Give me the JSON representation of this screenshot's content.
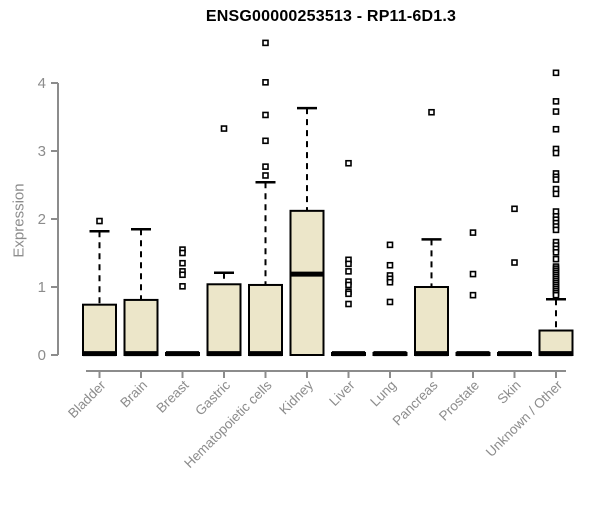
{
  "header": {
    "title": "ENSG00000253513 - RP11-6D1.3"
  },
  "chart_data": {
    "type": "boxplot",
    "title": "ENSG00000253513 - RP11-6D1.3",
    "xlabel": "",
    "ylabel": "Expression",
    "ylim": [
      0,
      4
    ],
    "yticks": [
      0,
      1,
      2,
      3,
      4
    ],
    "grid": false,
    "legend": "none",
    "colors": {
      "box_fill": "#ece6c9",
      "box_border": "#000000",
      "median": "#000000",
      "outlier_stroke": "#000000",
      "outlier_fill": "#ffffff",
      "axis": "#8c8c8c",
      "tick_text": "#8c8c8c",
      "title_text": "#000000"
    },
    "categories": [
      "Bladder",
      "Brain",
      "Breast",
      "Gastric",
      "Hematopoietic cells",
      "Kidney",
      "Liver",
      "Lung",
      "Pancreas",
      "Prostate",
      "Skin",
      "Unknown / Other"
    ],
    "series": [
      {
        "name": "Bladder",
        "whisker_low": 0,
        "q1": 0,
        "median": 0.02,
        "q3": 0.74,
        "whisker_high": 1.82,
        "outliers": [
          1.97
        ]
      },
      {
        "name": "Brain",
        "whisker_low": 0,
        "q1": 0,
        "median": 0.02,
        "q3": 0.81,
        "whisker_high": 1.85,
        "outliers": []
      },
      {
        "name": "Breast",
        "whisker_low": 0,
        "q1": 0,
        "median": 0.02,
        "q3": 0.03,
        "whisker_high": 0.03,
        "outliers": [
          1.55,
          1.5,
          1.35,
          1.23,
          1.18,
          1.01
        ]
      },
      {
        "name": "Gastric",
        "whisker_low": 0,
        "q1": 0,
        "median": 0.02,
        "q3": 1.04,
        "whisker_high": 1.21,
        "outliers": [
          3.33
        ]
      },
      {
        "name": "Hematopoietic cells",
        "whisker_low": 0,
        "q1": 0,
        "median": 0.02,
        "q3": 1.03,
        "whisker_high": 2.54,
        "outliers": [
          4.59,
          4.01,
          3.53,
          3.15,
          2.77,
          2.64
        ]
      },
      {
        "name": "Kidney",
        "whisker_low": 0,
        "q1": 0,
        "median": 1.19,
        "q3": 2.12,
        "whisker_high": 3.63,
        "outliers": []
      },
      {
        "name": "Liver",
        "whisker_low": 0,
        "q1": 0,
        "median": 0.02,
        "q3": 0.03,
        "whisker_high": 0.03,
        "outliers": [
          2.82,
          1.4,
          1.34,
          1.23,
          1.08,
          1.03,
          0.93,
          0.9,
          0.75
        ]
      },
      {
        "name": "Lung",
        "whisker_low": 0,
        "q1": 0,
        "median": 0.02,
        "q3": 0.03,
        "whisker_high": 0.03,
        "outliers": [
          1.62,
          1.32,
          1.17,
          1.12,
          1.07,
          0.78
        ]
      },
      {
        "name": "Pancreas",
        "whisker_low": 0,
        "q1": 0,
        "median": 0.02,
        "q3": 1.0,
        "whisker_high": 1.7,
        "outliers": [
          3.57
        ]
      },
      {
        "name": "Prostate",
        "whisker_low": 0,
        "q1": 0,
        "median": 0.02,
        "q3": 0.03,
        "whisker_high": 0.03,
        "outliers": [
          1.8,
          1.19,
          0.88
        ]
      },
      {
        "name": "Skin",
        "whisker_low": 0,
        "q1": 0,
        "median": 0.02,
        "q3": 0.03,
        "whisker_high": 0.03,
        "outliers": [
          2.15,
          1.36
        ]
      },
      {
        "name": "Unknown / Other",
        "whisker_low": 0,
        "q1": 0,
        "median": 0.02,
        "q3": 0.36,
        "whisker_high": 0.82,
        "outliers": [
          4.15,
          3.73,
          3.58,
          3.32,
          3.03,
          2.97,
          2.67,
          2.62,
          2.58,
          2.44,
          2.37,
          2.11,
          2.04,
          1.99,
          1.94,
          1.89,
          1.84,
          1.66,
          1.61,
          1.56,
          1.51,
          1.41,
          1.3,
          1.27,
          1.24,
          1.21,
          1.18,
          1.15,
          1.12,
          1.09,
          1.06,
          1.03,
          1.0,
          0.97,
          0.94,
          0.91,
          0.88
        ]
      }
    ]
  }
}
